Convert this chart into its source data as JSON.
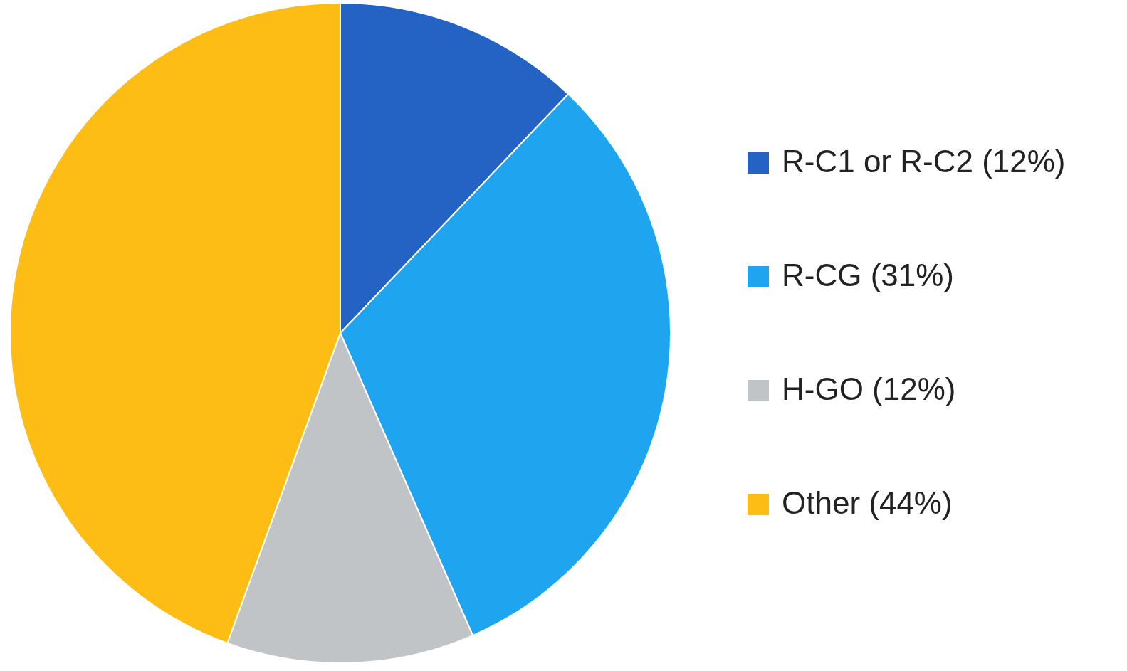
{
  "chart_data": {
    "type": "pie",
    "categories": [
      "R-C1 or R-C2 (12%)",
      "R-CG (31%)",
      "H-GO (12%)",
      "Other (44%)"
    ],
    "values": [
      12,
      31,
      12,
      44
    ],
    "colors": [
      "#2463c4",
      "#1fa5f0",
      "#c0c4c6",
      "#fdbd14"
    ],
    "legend": "right"
  }
}
